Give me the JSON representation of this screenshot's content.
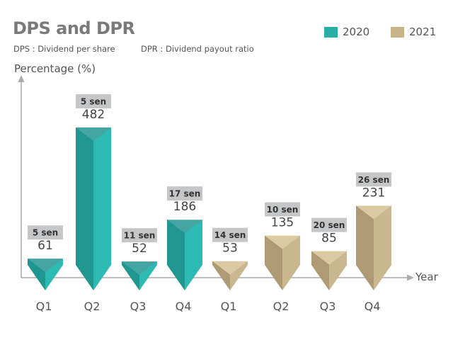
{
  "header": {
    "title": "DPS and DPR",
    "note_dps": "DPS : Dividend per share",
    "note_dpr": "DPR : Dividend payout ratio"
  },
  "legend": [
    {
      "label": "2020",
      "color": "#27aea6"
    },
    {
      "label": "2021",
      "color": "#c8b486"
    }
  ],
  "chart_data": {
    "type": "bar",
    "ylabel": "Percentage (%)",
    "xlabel": "Year",
    "ylim": [
      0,
      520
    ],
    "grid": false,
    "legend_position": "top-right",
    "categories": [
      "Q1",
      "Q2",
      "Q3",
      "Q4",
      "Q1",
      "Q2",
      "Q3",
      "Q4"
    ],
    "series": [
      {
        "name": "2020",
        "color": "#27aea6",
        "values": [
          61,
          482,
          52,
          186,
          null,
          null,
          null,
          null
        ],
        "dps_labels": [
          "5 sen",
          "5 sen",
          "11 sen",
          "17 sen",
          null,
          null,
          null,
          null
        ]
      },
      {
        "name": "2021",
        "color": "#c8b486",
        "values": [
          null,
          null,
          null,
          null,
          53,
          135,
          85,
          231
        ],
        "dps_labels": [
          null,
          null,
          null,
          null,
          "14 sen",
          "10 sen",
          "20 sen",
          "26 sen"
        ]
      }
    ]
  }
}
